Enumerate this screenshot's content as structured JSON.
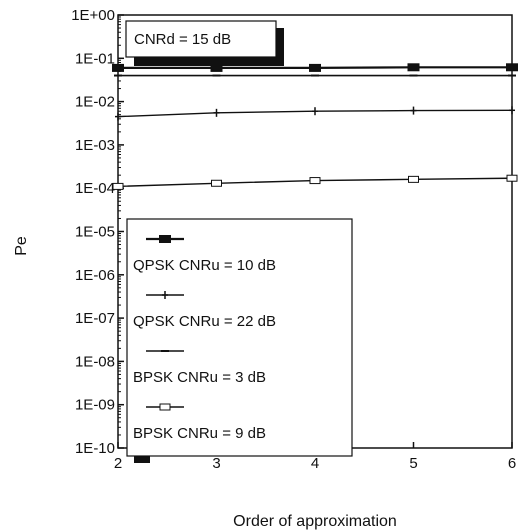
{
  "chart_data": {
    "type": "line",
    "title": "",
    "annotation": "CNRd = 15 dB",
    "xlabel": "Order of approximation",
    "ylabel": "Pe",
    "xlim": [
      2,
      6
    ],
    "ylim": [
      1e-10,
      1
    ],
    "yscale": "log",
    "x_ticks": [
      "2",
      "3",
      "4",
      "5",
      "6"
    ],
    "y_ticks": [
      "1E+00",
      "1E-01",
      "1E-02",
      "1E-03",
      "1E-04",
      "1E-05",
      "1E-06",
      "1E-07",
      "1E-08",
      "1E-09",
      "1E-10"
    ],
    "x": [
      2,
      3,
      4,
      5,
      6
    ],
    "series": [
      {
        "name": "QPSK CNRu = 10 dB",
        "marker": "filled-square",
        "values": [
          0.06,
          0.06,
          0.06,
          0.062,
          0.062
        ]
      },
      {
        "name": "QPSK CNRu = 22 dB",
        "marker": "plus",
        "values": [
          0.0045,
          0.0055,
          0.006,
          0.0062,
          0.0063
        ]
      },
      {
        "name": "BPSK CNRu = 3 dB",
        "marker": "dash",
        "values": [
          0.04,
          0.04,
          0.04,
          0.04,
          0.04
        ]
      },
      {
        "name": "BPSK CNRu = 9 dB",
        "marker": "open-square",
        "values": [
          0.00011,
          0.00013,
          0.00015,
          0.00016,
          0.00017
        ]
      }
    ],
    "grid": false,
    "legend_position": "bottom-left"
  }
}
